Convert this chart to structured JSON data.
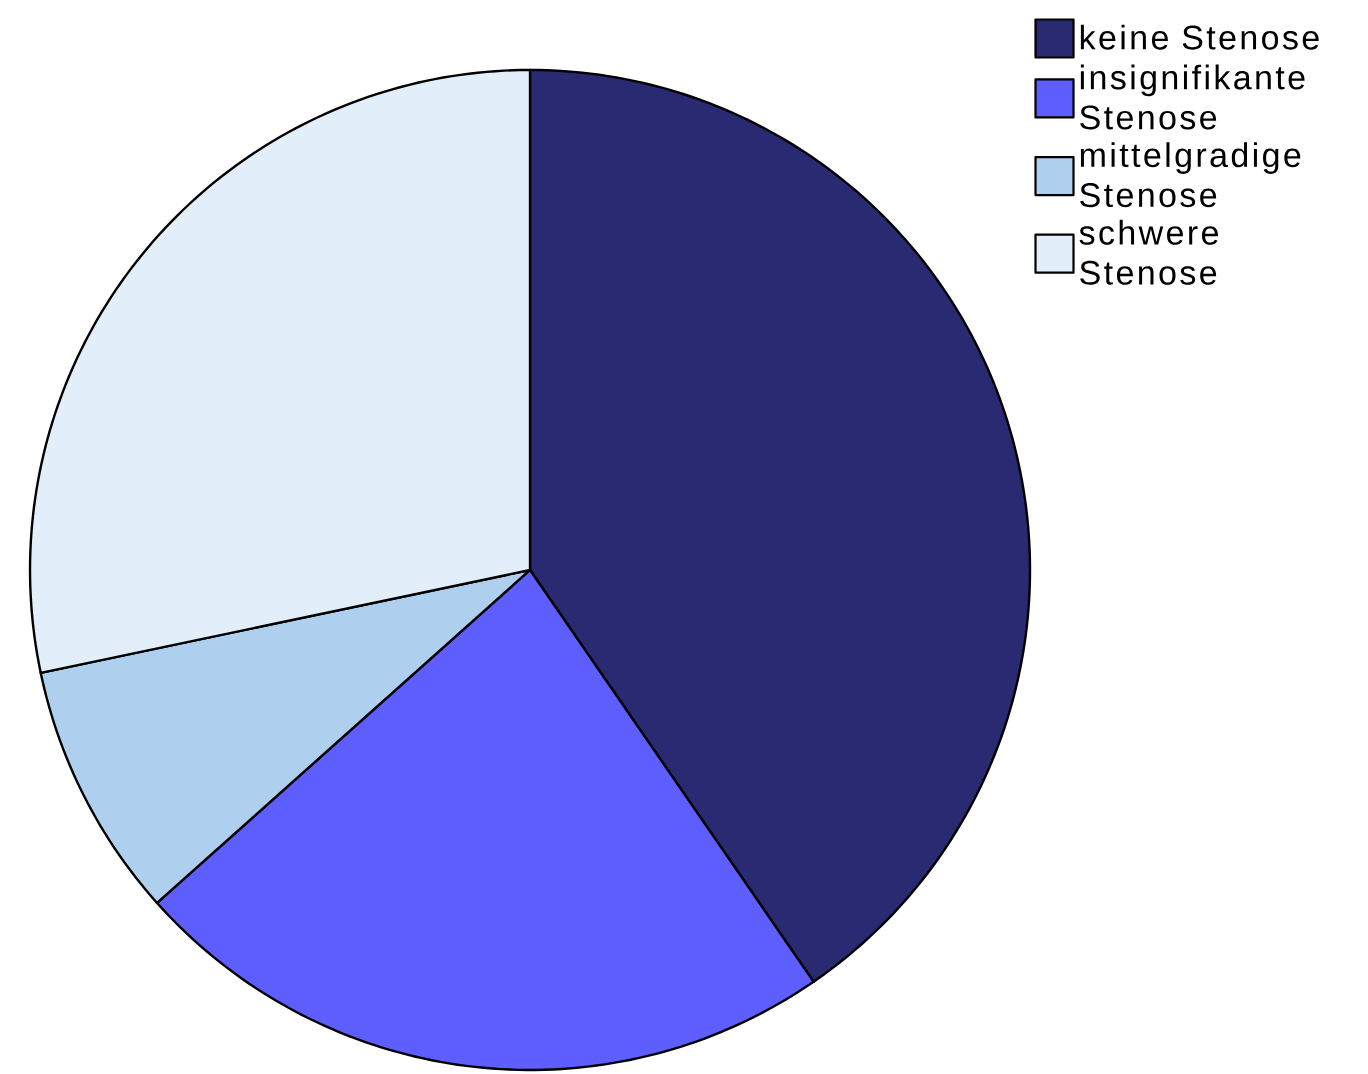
{
  "chart_data": {
    "type": "pie",
    "categories": [
      "keine Stenose",
      "insignifikante Stenose",
      "mittelgradige Stenose",
      "schwere Stenose"
    ],
    "values": [
      40.4,
      23.0,
      8.3,
      28.3
    ],
    "colors": [
      "#2a2a72",
      "#5e5eff",
      "#aed0ee",
      "#e2eefa"
    ],
    "legend": "top right"
  }
}
